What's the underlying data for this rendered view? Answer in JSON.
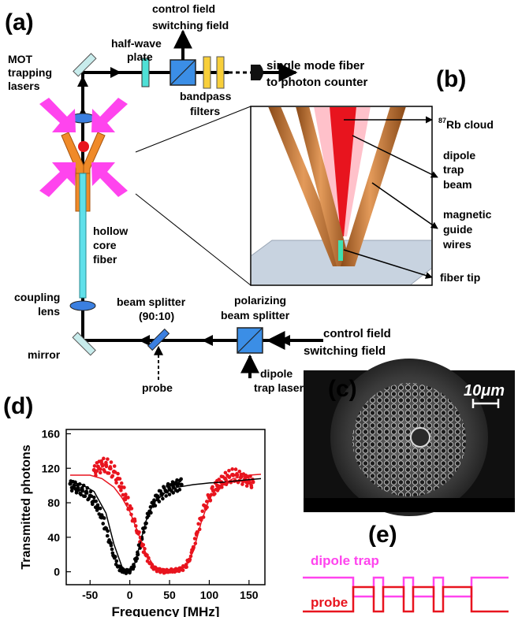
{
  "panels": {
    "a": "(a)",
    "b": "(b)",
    "c": "(c)",
    "d": "(d)",
    "e": "(e)"
  },
  "setup": {
    "mot_line1": "MOT",
    "mot_line2": "trapping",
    "mot_line3": "lasers",
    "halfwave_line1": "half-wave",
    "halfwave_line2": "plate",
    "control_top_line1": "control field",
    "control_top_line2": "switching field",
    "fiber_line1": "single mode fiber",
    "fiber_line2": "to photon counter",
    "bandpass_line1": "bandpass",
    "bandpass_line2": "filters",
    "hollow_line1": "hollow",
    "hollow_line2": "core",
    "hollow_line3": "fiber",
    "coupling_line1": "coupling",
    "coupling_line2": "lens",
    "mirror": "mirror",
    "beamsplitter_line1": "beam splitter",
    "beamsplitter_line2": "(90:10)",
    "probe": "probe",
    "pbs_line1": "polarizing",
    "pbs_line2": "beam splitter",
    "control_bottom_line1": "control field",
    "control_bottom_line2": "switching field",
    "dipole_laser_line1": "dipole",
    "dipole_laser_line2": "trap laser"
  },
  "zoom": {
    "rb_sup": "87",
    "rb_text": "Rb cloud",
    "dipole_line1": "dipole",
    "dipole_line2": "trap",
    "dipole_line3": "beam",
    "magnetic_line1": "magnetic",
    "magnetic_line2": "guide",
    "magnetic_line3": "wires",
    "fiber_tip": "fiber tip"
  },
  "sem": {
    "scale_label": "10μm"
  },
  "timing": {
    "dipole_label": "dipole trap",
    "probe_label": "probe",
    "dipole_color": "#ff44ee",
    "probe_color": "#e8141e"
  },
  "chart_data": {
    "type": "scatter",
    "xlabel": "Frequency [MHz]",
    "ylabel": "Transmitted photons",
    "xlim": [
      -80,
      170
    ],
    "ylim": [
      -15,
      165
    ],
    "xticks": [
      -50,
      0,
      50,
      100,
      150
    ],
    "yticks": [
      0,
      40,
      80,
      120,
      160
    ],
    "grid": false,
    "series": [
      {
        "color": "#000000",
        "kind": "points",
        "x": [
          -75,
          -70,
          -65,
          -60,
          -55,
          -50,
          -45,
          -40,
          -35,
          -30,
          -25,
          -20,
          -15,
          -10,
          -5,
          0,
          5,
          10,
          15,
          20,
          25,
          30,
          35,
          40,
          45,
          50,
          55,
          60,
          65
        ],
        "y": [
          102,
          100,
          97,
          95,
          92,
          88,
          82,
          74,
          64,
          50,
          34,
          18,
          6,
          1,
          0,
          1,
          6,
          20,
          38,
          56,
          70,
          80,
          86,
          90,
          94,
          96,
          98,
          100,
          101
        ]
      },
      {
        "color": "#e8141e",
        "kind": "points",
        "x": [
          -45,
          -40,
          -35,
          -30,
          -25,
          -20,
          -15,
          -10,
          -5,
          0,
          5,
          10,
          15,
          20,
          25,
          30,
          35,
          40,
          45,
          50,
          55,
          60,
          65,
          70,
          75,
          80,
          85,
          90,
          95,
          100,
          105,
          110,
          115,
          120,
          125,
          130,
          135,
          140,
          145,
          150,
          155
        ],
        "y": [
          118,
          122,
          125,
          124,
          120,
          116,
          108,
          98,
          86,
          74,
          60,
          46,
          32,
          20,
          10,
          4,
          2,
          1,
          0,
          1,
          1,
          2,
          3,
          6,
          14,
          28,
          46,
          62,
          76,
          86,
          94,
          100,
          104,
          108,
          110,
          112,
          112,
          110,
          108,
          106,
          104
        ]
      },
      {
        "color": "#000000",
        "kind": "fit",
        "x": [
          -75,
          -60,
          -45,
          -30,
          -20,
          -10,
          -5,
          0,
          5,
          10,
          20,
          30,
          45,
          60,
          80,
          100,
          120,
          140,
          165
        ],
        "y": [
          104,
          101,
          93,
          68,
          32,
          6,
          2,
          2,
          6,
          22,
          58,
          80,
          92,
          98,
          101,
          103,
          104,
          106,
          108
        ]
      },
      {
        "color": "#e8141e",
        "kind": "fit",
        "x": [
          -75,
          -50,
          -35,
          -20,
          -10,
          0,
          10,
          20,
          30,
          40,
          50,
          60,
          70,
          80,
          90,
          100,
          110,
          130,
          150,
          165
        ],
        "y": [
          112,
          112,
          108,
          98,
          86,
          70,
          46,
          22,
          7,
          2,
          1,
          2,
          6,
          24,
          58,
          84,
          98,
          108,
          112,
          113
        ]
      }
    ]
  }
}
